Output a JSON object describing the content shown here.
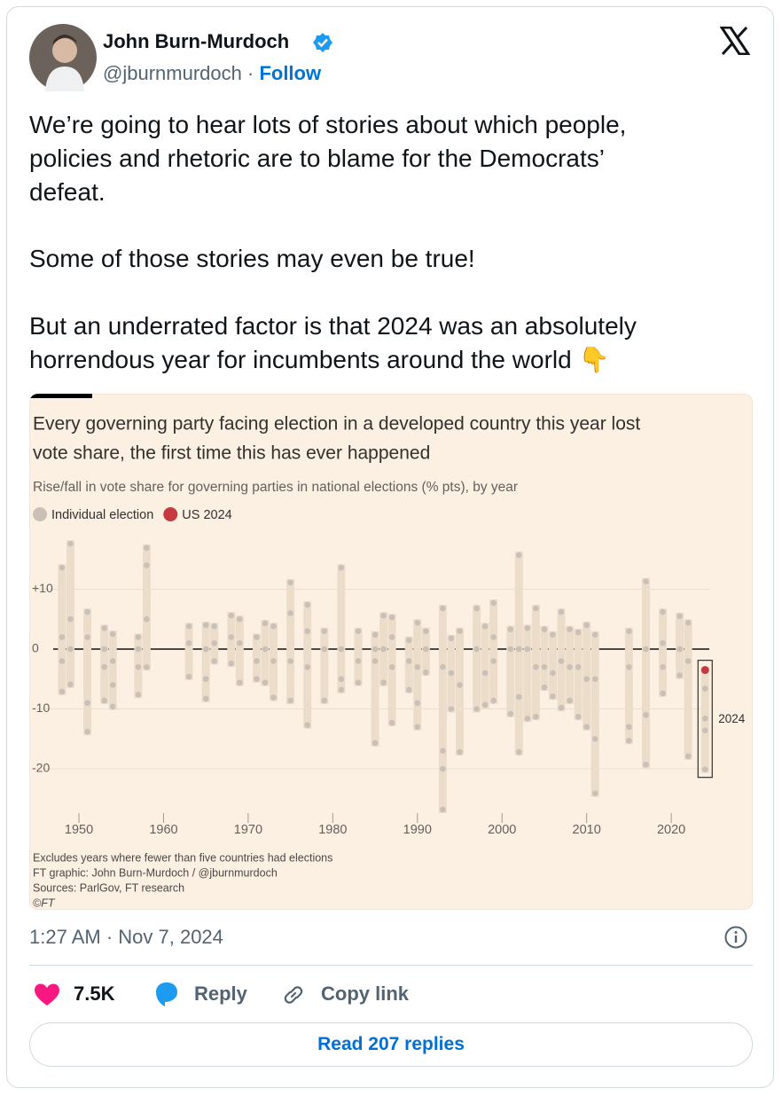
{
  "tweet": {
    "author_name": "John Burn-Murdoch",
    "handle": "@jburnmurdoch",
    "separator": "·",
    "follow": "Follow",
    "paragraphs": [
      [
        "We’re going to hear lots of stories about which people,",
        "policies and rhetoric are to blame for the Democrats’",
        "defeat."
      ],
      [
        "Some of those stories may even be true!"
      ],
      [
        "But an underrated factor is that 2024 was an absolutely",
        "horrendous year for incumbents around the world 👇"
      ]
    ],
    "timestamp": "1:27 AM · Nov 7, 2024",
    "likes": "7.5K",
    "reply": "Reply",
    "copy_link": "Copy link",
    "read_replies": "Read 207 replies"
  },
  "chart_data": {
    "type": "scatter",
    "title": [
      "Every governing party facing election in a developed country this year lost",
      "vote share, the first time this has ever happened"
    ],
    "subtitle": "Rise/fall in vote share for governing parties in national elections (% pts), by year",
    "annotation": "2024",
    "notes": [
      "Excludes years where fewer than five countries had elections",
      "FT graphic: John Burn-Murdoch / @jburnmurdoch",
      "Sources: ParlGov, FT research",
      "©FT"
    ],
    "xlim": [
      1945,
      2029
    ],
    "xticks": [
      1950,
      1960,
      1970,
      1980,
      1990,
      2000,
      2010,
      2020
    ],
    "ylim": [
      -28,
      19
    ],
    "yticks": [
      {
        "value": 10,
        "label": "+10"
      },
      0,
      -10,
      -20
    ],
    "grid": true,
    "series": [
      {
        "name": "Individual election",
        "color": "#c9c0b8",
        "x": [
          1948,
          1948,
          1948,
          1948,
          1949,
          1949,
          1949,
          1949,
          1951,
          1951,
          1951,
          1951,
          1953,
          1953,
          1953,
          1953,
          1954,
          1954,
          1954,
          1954,
          1957,
          1957,
          1957,
          1957,
          1958,
          1958,
          1958,
          1958,
          1963,
          1963,
          1963,
          1965,
          1965,
          1965,
          1965,
          1966,
          1966,
          1966,
          1968,
          1968,
          1968,
          1969,
          1969,
          1969,
          1971,
          1971,
          1971,
          1972,
          1972,
          1972,
          1973,
          1973,
          1973,
          1975,
          1975,
          1975,
          1975,
          1977,
          1977,
          1977,
          1977,
          1979,
          1979,
          1979,
          1981,
          1981,
          1981,
          1981,
          1983,
          1983,
          1983,
          1985,
          1985,
          1985,
          1985,
          1986,
          1986,
          1986,
          1987,
          1987,
          1987,
          1987,
          1989,
          1989,
          1989,
          1990,
          1990,
          1990,
          1990,
          1991,
          1991,
          1991,
          1993,
          1993,
          1993,
          1993,
          1993,
          1994,
          1994,
          1994,
          1995,
          1995,
          1995,
          1997,
          1997,
          1997,
          1998,
          1998,
          1998,
          1999,
          1999,
          1999,
          1999,
          2001,
          2001,
          2001,
          2002,
          2002,
          2002,
          2002,
          2003,
          2003,
          2003,
          2004,
          2004,
          2004,
          2005,
          2005,
          2005,
          2006,
          2006,
          2006,
          2007,
          2007,
          2007,
          2008,
          2008,
          2008,
          2009,
          2009,
          2009,
          2010,
          2010,
          2010,
          2011,
          2011,
          2011,
          2011,
          2015,
          2015,
          2015,
          2015,
          2017,
          2017,
          2017,
          2017,
          2019,
          2019,
          2019,
          2019,
          2021,
          2021,
          2021,
          2022,
          2022,
          2022,
          2024,
          2024,
          2024,
          2024
        ],
        "values": [
          13.6,
          2,
          -2,
          -7.1,
          17.6,
          5,
          0,
          -5.9,
          6.2,
          2,
          -9,
          -13.8,
          3.5,
          0,
          -3,
          -8.6,
          2.5,
          -2,
          -6,
          -9.6,
          2,
          0,
          -3,
          -7.6,
          16.9,
          14,
          5,
          -3,
          3.8,
          1,
          -4.6,
          4,
          0,
          -5,
          -8.3,
          3.8,
          1,
          -2,
          5.6,
          2,
          -2.4,
          5,
          1,
          -5.6,
          2,
          -2,
          -5,
          4.3,
          0,
          -5.6,
          3.8,
          -2,
          -8.1,
          11.1,
          6,
          -2,
          -8.6,
          7.4,
          3,
          -3,
          -12.7,
          3,
          0,
          -8.6,
          13.6,
          0,
          -5,
          -6.8,
          3,
          -2,
          -5.6,
          2.4,
          0,
          -2,
          -15.7,
          5.6,
          0,
          -5.6,
          5.3,
          2,
          -3,
          -12.3,
          1.5,
          -2,
          -6.8,
          4.4,
          -3,
          -9,
          -13,
          3,
          0,
          -3.9,
          6.8,
          -3,
          -17,
          -20,
          -26.8,
          1.8,
          -4,
          -10,
          3,
          -6,
          -17.2,
          6.8,
          0,
          -10,
          3.8,
          -4,
          -9.3,
          7.7,
          2,
          -2,
          -8.6,
          3.3,
          0,
          -10.8,
          15.7,
          0,
          -8,
          -17.2,
          3.5,
          0,
          -11.6,
          6.8,
          -3,
          -11.3,
          3.3,
          -3,
          -6.4,
          2.4,
          -4,
          -7.9,
          6.2,
          -2,
          -9.8,
          3.3,
          -3,
          -8.6,
          2.8,
          -3,
          -11.3,
          4,
          -5,
          -13,
          2.4,
          -5,
          -15,
          -24.1,
          3,
          -3,
          -13,
          -15.3,
          11.3,
          0,
          -11,
          -19.3,
          6.2,
          1,
          -3,
          -7.4,
          5.5,
          0,
          -4.4,
          4.4,
          -2,
          -17.9,
          -6.6,
          -11.6,
          -13.6,
          -20.1
        ]
      },
      {
        "name": "US 2024",
        "color": "#c6393f",
        "x": [
          2024
        ],
        "values": [
          -3.5
        ]
      }
    ]
  }
}
